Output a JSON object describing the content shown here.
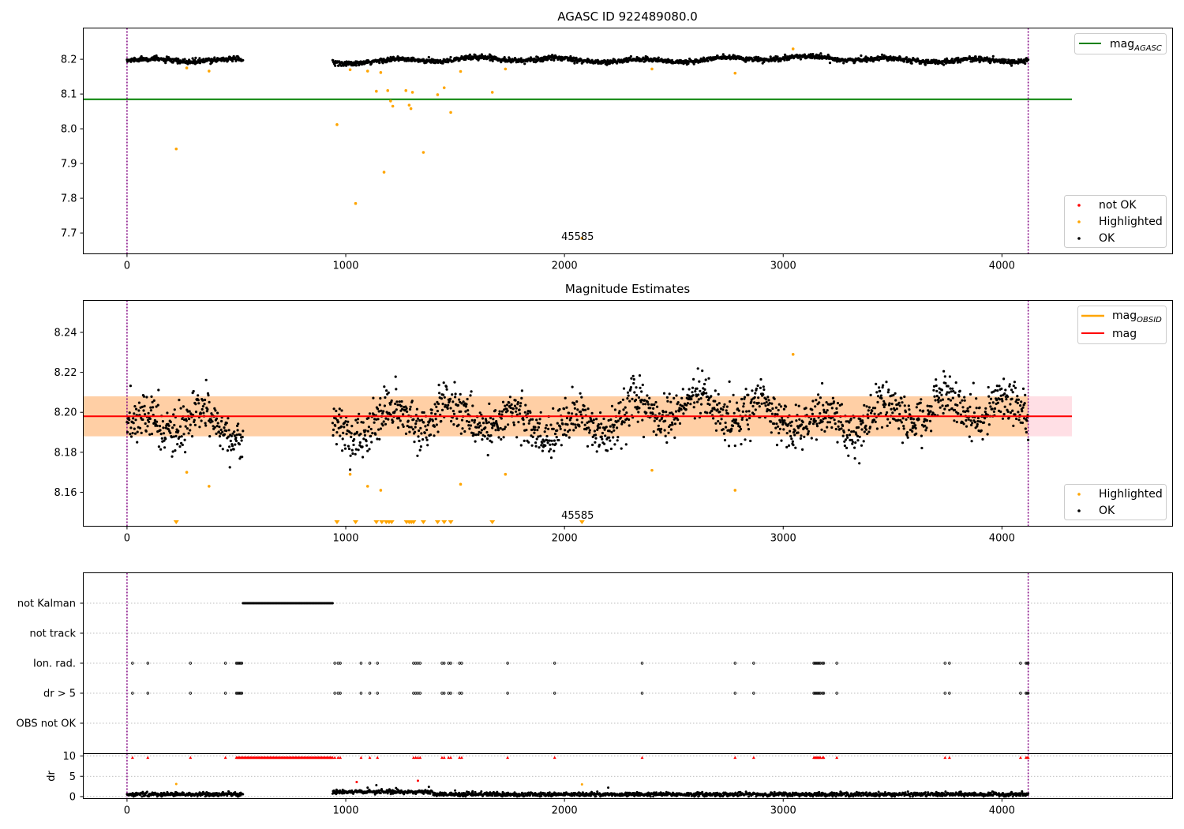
{
  "chart_data": [
    {
      "type": "scatter",
      "title": "AGASC ID 922489080.0",
      "xlim": [
        -200,
        4780
      ],
      "ylim": [
        7.64,
        8.29
      ],
      "xticks": [
        0,
        1000,
        2000,
        3000,
        4000
      ],
      "yticks": [
        7.7,
        7.8,
        7.9,
        8.0,
        8.1,
        8.2
      ],
      "ytick_labels": [
        "7.7",
        "7.8",
        "7.9",
        "8.0",
        "8.1",
        "8.2"
      ],
      "vlines": [
        0,
        4120
      ],
      "hline": {
        "name": "mag_AGASC",
        "y": 8.085,
        "x": [
          -200,
          4320
        ],
        "color": "#008000"
      },
      "annotation": {
        "text": "45585",
        "x": 2060,
        "y": 7.675
      },
      "ok_band": {
        "mean": 8.197,
        "amplitude": 0.005,
        "scatter": 0.005
      },
      "ok_segments": [
        [
          0,
          530
        ],
        [
          940,
          4120
        ]
      ],
      "highlighted": [
        [
          225,
          7.942
        ],
        [
          273,
          8.175
        ],
        [
          375,
          8.166
        ],
        [
          960,
          8.012
        ],
        [
          1020,
          8.17
        ],
        [
          1045,
          7.785
        ],
        [
          1100,
          8.166
        ],
        [
          1140,
          8.108
        ],
        [
          1160,
          8.162
        ],
        [
          1175,
          7.875
        ],
        [
          1192,
          8.11
        ],
        [
          1205,
          8.08
        ],
        [
          1215,
          8.065
        ],
        [
          1275,
          8.11
        ],
        [
          1290,
          8.068
        ],
        [
          1298,
          8.058
        ],
        [
          1305,
          8.105
        ],
        [
          1355,
          7.932
        ],
        [
          1420,
          8.098
        ],
        [
          1450,
          8.118
        ],
        [
          1480,
          8.047
        ],
        [
          1525,
          8.165
        ],
        [
          1670,
          8.105
        ],
        [
          1730,
          8.172
        ],
        [
          2080,
          7.685
        ],
        [
          2400,
          8.172
        ],
        [
          2780,
          8.16
        ],
        [
          3045,
          8.23
        ]
      ],
      "not_ok": [],
      "legend_top": [
        {
          "label": "mag",
          "sub": "AGASC",
          "color": "#008000"
        }
      ],
      "legend_bottom": [
        {
          "label": "not OK",
          "color": "#ff0000"
        },
        {
          "label": "Highlighted",
          "color": "#ffa500"
        },
        {
          "label": "OK",
          "color": "#000000"
        }
      ]
    },
    {
      "type": "scatter",
      "title": "Magnitude Estimates",
      "xlim": [
        -200,
        4780
      ],
      "ylim": [
        8.143,
        8.256
      ],
      "xticks": [
        0,
        1000,
        2000,
        3000,
        4000
      ],
      "yticks": [
        8.16,
        8.18,
        8.2,
        8.22,
        8.24
      ],
      "ytick_labels": [
        "8.16",
        "8.18",
        "8.20",
        "8.22",
        "8.24"
      ],
      "vlines": [
        0,
        4120
      ],
      "mag_line": {
        "name": "mag",
        "y": 8.198,
        "x": [
          -200,
          4320
        ],
        "color": "#ff0000"
      },
      "mag_band": {
        "low": 8.188,
        "high": 8.208,
        "color": "#ffc0cb"
      },
      "obsid_band": {
        "name": "mag_OBSID",
        "low": 8.188,
        "high": 8.208,
        "x": [
          -200,
          4120
        ],
        "color": "#ffa500"
      },
      "annotation": {
        "text": "45585",
        "x": 2060,
        "y": 8.146
      },
      "ok_segments": [
        [
          0,
          530
        ],
        [
          940,
          4120
        ]
      ],
      "highlighted": [
        [
          273,
          8.17
        ],
        [
          375,
          8.163
        ],
        [
          1020,
          8.169
        ],
        [
          1100,
          8.163
        ],
        [
          1160,
          8.161
        ],
        [
          1525,
          8.164
        ],
        [
          1730,
          8.169
        ],
        [
          2400,
          8.171
        ],
        [
          2780,
          8.161
        ],
        [
          3045,
          8.229
        ]
      ],
      "off_scale_low": [
        225,
        960,
        1045,
        1140,
        1165,
        1185,
        1198,
        1210,
        1278,
        1290,
        1300,
        1310,
        1355,
        1420,
        1450,
        1480,
        1670,
        2080
      ],
      "legend_top": [
        {
          "label": "mag",
          "sub": "OBSID",
          "color": "#ffa500"
        },
        {
          "label": "mag",
          "sub": "",
          "color": "#ff0000"
        }
      ],
      "legend_bottom": [
        {
          "label": "Highlighted",
          "color": "#ffa500"
        },
        {
          "label": "OK",
          "color": "#000000"
        }
      ]
    },
    {
      "type": "scatter",
      "title": "",
      "xlim": [
        -200,
        4780
      ],
      "xticks": [
        0,
        1000,
        2000,
        3000,
        4000
      ],
      "vlines": [
        0,
        4120
      ],
      "flags": [
        "not Kalman",
        "not track",
        "Ion. rad.",
        "dr > 5",
        "OBS not OK"
      ],
      "not_kalman_range": [
        530,
        940
      ],
      "flag_times": [
        25,
        95,
        290,
        450,
        500,
        505,
        510,
        515,
        520,
        525,
        950,
        965,
        975,
        1070,
        1110,
        1145,
        1310,
        1320,
        1330,
        1340,
        1440,
        1450,
        1470,
        1480,
        1520,
        1530,
        1740,
        1955,
        2355,
        2780,
        2865,
        3140,
        3145,
        3150,
        3155,
        3160,
        3165,
        3170,
        3180,
        3185,
        3245,
        3740,
        3760,
        4085,
        4110,
        4115,
        4120
      ],
      "dr": {
        "ylabel": "dr",
        "ylim": [
          0,
          10.5
        ],
        "yticks": [
          0,
          5,
          10
        ],
        "cap": 10,
        "ok_segments": [
          [
            0,
            530
          ],
          [
            940,
            4120
          ]
        ],
        "highlighted": [
          [
            225,
            3.1
          ],
          [
            2080,
            3.0
          ]
        ],
        "not_ok": [
          [
            1050,
            3.6
          ],
          [
            1330,
            3.9
          ]
        ],
        "extra_ok": [
          [
            1100,
            2.2
          ],
          [
            1140,
            2.8
          ],
          [
            1200,
            1.8
          ],
          [
            1230,
            2.1
          ],
          [
            1380,
            2.4
          ],
          [
            1500,
            1.5
          ],
          [
            1580,
            1.3
          ],
          [
            2200,
            2.2
          ]
        ]
      }
    }
  ]
}
